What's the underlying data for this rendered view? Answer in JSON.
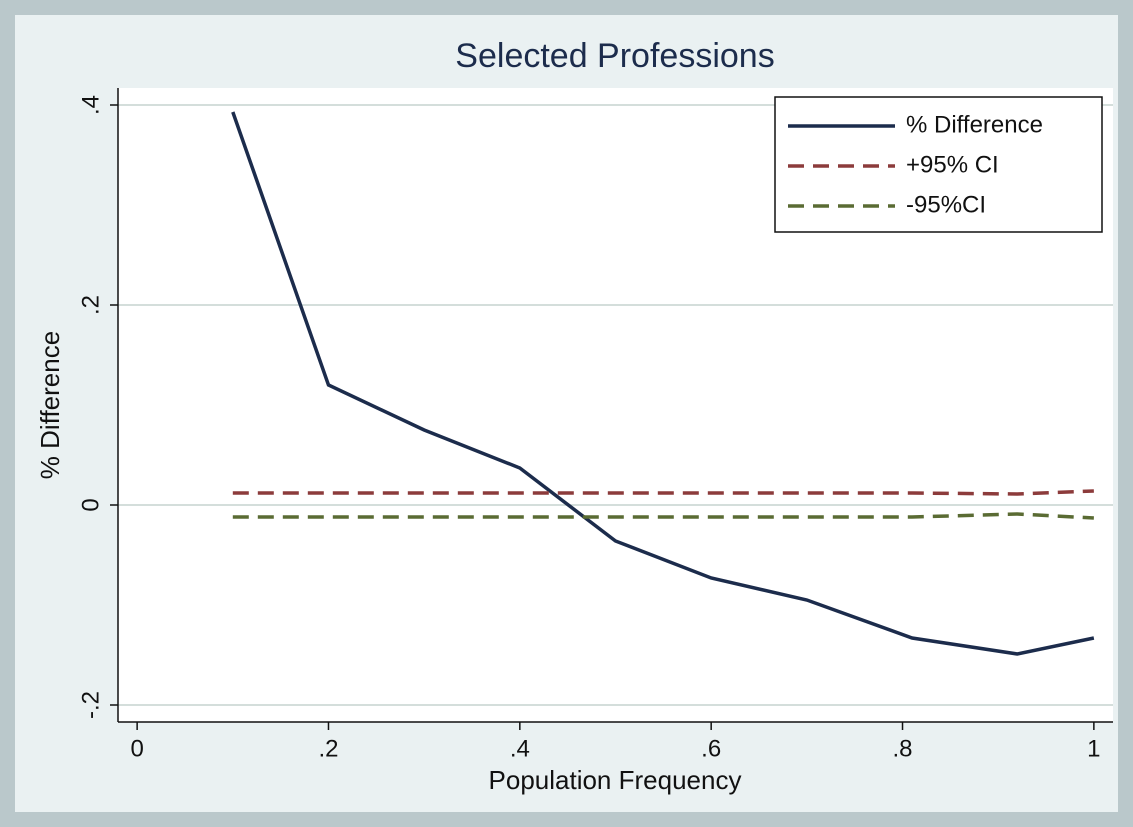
{
  "chart_data": {
    "type": "line",
    "title": "Selected Professions",
    "x_label": "Population Frequency",
    "y_label": "% Difference",
    "x": [
      0.1,
      0.2,
      0.3,
      0.4,
      0.5,
      0.6,
      0.7,
      0.81,
      0.92,
      1.0
    ],
    "series": [
      {
        "name": "% Difference",
        "color": "#1c2c4c",
        "dash": false,
        "values": [
          0.393,
          0.12,
          0.075,
          0.037,
          -0.036,
          -0.073,
          -0.095,
          -0.133,
          -0.149,
          -0.133
        ]
      },
      {
        "name": "+95% CI",
        "color": "#8c3b3b",
        "dash": true,
        "values": [
          0.012,
          0.012,
          0.012,
          0.012,
          0.012,
          0.012,
          0.012,
          0.012,
          0.011,
          0.014
        ]
      },
      {
        "name": "-95%CI",
        "color": "#5a6b33",
        "dash": true,
        "values": [
          -0.012,
          -0.012,
          -0.012,
          -0.012,
          -0.012,
          -0.012,
          -0.012,
          -0.012,
          -0.009,
          -0.013
        ]
      }
    ],
    "xlim": [
      -0.02,
      1.02
    ],
    "ylim": [
      -0.217,
      0.417
    ],
    "xticks": [
      0,
      {
        "value": 0.2,
        "label": ".2"
      },
      {
        "value": 0.4,
        "label": ".4"
      },
      {
        "value": 0.6,
        "label": ".6"
      },
      {
        "value": 0.8,
        "label": ".8"
      },
      1
    ],
    "yticks": [
      {
        "value": -0.2,
        "label": "-.2"
      },
      0,
      {
        "value": 0.2,
        "label": ".2"
      },
      {
        "value": 0.4,
        "label": ".4"
      }
    ],
    "grid": true
  }
}
